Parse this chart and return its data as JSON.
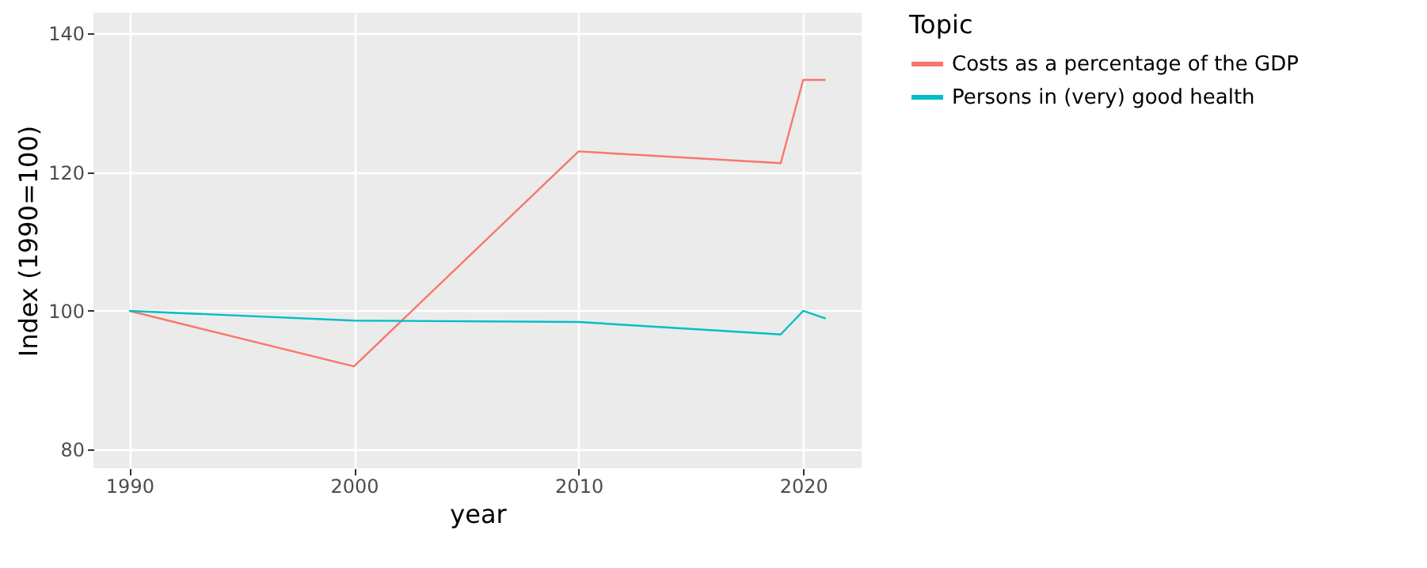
{
  "chart_data": {
    "type": "line",
    "xlabel": "year",
    "ylabel": "Index (1990=100)",
    "legend_title": "Topic",
    "x": [
      1990,
      2000,
      2010,
      2019,
      2020,
      2021
    ],
    "series": [
      {
        "name": "Costs as a percentage of the GDP",
        "color": "#f8766d",
        "values": [
          100,
          92,
          123,
          121.3,
          133.3,
          133.3
        ]
      },
      {
        "name": "Persons in (very) good health",
        "color": "#00bfc4",
        "values": [
          100,
          98.6,
          98.4,
          96.6,
          100,
          98.9
        ]
      }
    ],
    "xlim": [
      1988.4,
      2022.6
    ],
    "ylim": [
      77.3,
      143
    ],
    "xticks": [
      1990,
      2000,
      2010,
      2020
    ],
    "yticks": [
      80,
      100,
      120,
      140
    ],
    "grid": true,
    "legend": "right",
    "marker": "none",
    "line_style": "solid"
  }
}
